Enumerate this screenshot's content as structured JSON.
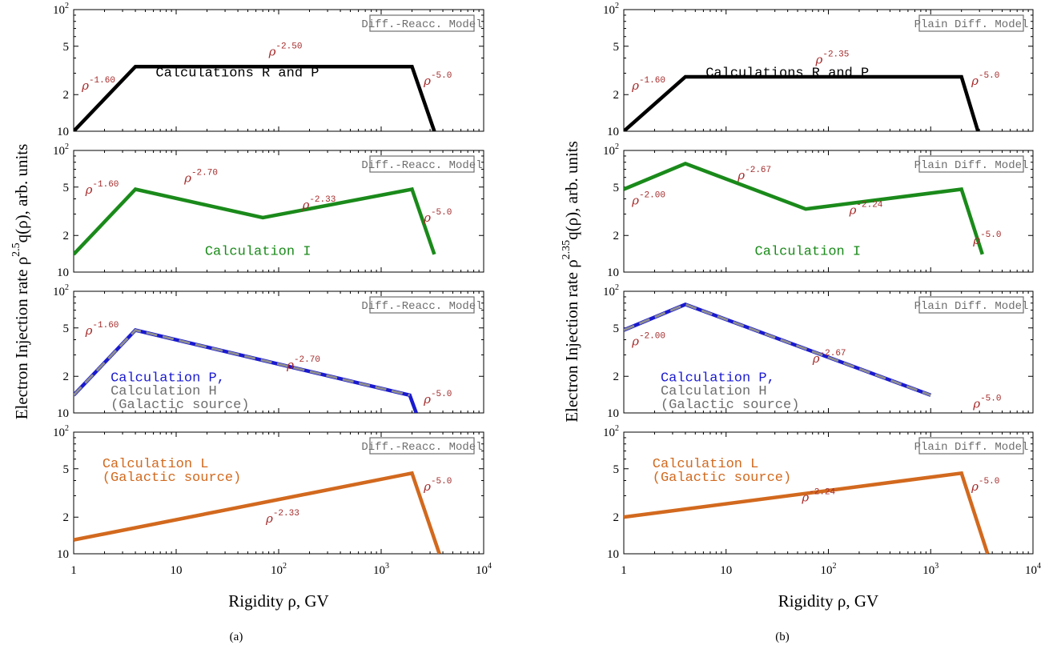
{
  "chart_data": [
    {
      "id": "a",
      "caption": "(a)",
      "type": "line",
      "xscale": "log",
      "yscale": "log",
      "xlim": [
        1,
        10000
      ],
      "ylim": [
        10,
        100
      ],
      "x_ticks": [
        {
          "base": "1",
          "exp": ""
        },
        {
          "base": "10",
          "exp": ""
        },
        {
          "base": "10",
          "exp": "2"
        },
        {
          "base": "10",
          "exp": "3"
        },
        {
          "base": "10",
          "exp": "4"
        }
      ],
      "y_ticks": [
        {
          "value": 10,
          "label": "10",
          "exp": ""
        },
        {
          "value": 20,
          "label": "2",
          "exp": ""
        },
        {
          "value": 50,
          "label": "5",
          "exp": ""
        },
        {
          "value": 100,
          "label": "10",
          "exp": "2"
        }
      ],
      "xlabel": "Rigidity ρ,   GV",
      "ylabel": {
        "text": "Electron Injection rate  ρ",
        "exp": "2.5",
        "rest": "q(ρ),   arb. units"
      },
      "panels": [
        {
          "model_label": "Diff.-Reacc. Model",
          "labels": [
            {
              "text": "Calculations R and P",
              "color": "#000000"
            }
          ],
          "series": [
            {
              "color": "#000000",
              "dashed": false,
              "x": [
                1,
                4,
                2000,
                3300
              ],
              "y": [
                10,
                34,
                34,
                10
              ]
            }
          ],
          "slopes": [
            {
              "base": "ρ",
              "exp": "-1.60",
              "x": 1.2,
              "y": 22
            },
            {
              "base": "ρ",
              "exp": "-2.50",
              "x": 80,
              "y": 42
            },
            {
              "base": "ρ",
              "exp": "-5.0",
              "x": 2600,
              "y": 24
            }
          ]
        },
        {
          "model_label": "Diff.-Reacc. Model",
          "labels": [
            {
              "text": "Calculation I",
              "color": "#1a8a1a"
            }
          ],
          "series": [
            {
              "color": "#1a8a1a",
              "dashed": false,
              "x": [
                1,
                4,
                70,
                2000,
                3300
              ],
              "y": [
                14,
                48,
                28,
                48,
                14
              ]
            }
          ],
          "slopes": [
            {
              "base": "ρ",
              "exp": "-1.60",
              "x": 1.3,
              "y": 44
            },
            {
              "base": "ρ",
              "exp": "-2.70",
              "x": 12,
              "y": 55
            },
            {
              "base": "ρ",
              "exp": "-2.33",
              "x": 170,
              "y": 33
            },
            {
              "base": "ρ",
              "exp": "-5.0",
              "x": 2600,
              "y": 26
            }
          ]
        },
        {
          "model_label": "Diff.-Reacc. Model",
          "labels": [
            {
              "text": "Calculation P,",
              "color": "#1a1ad0"
            },
            {
              "text": "Calculation H",
              "color": "#6e6e6e"
            },
            {
              "text": "(Galactic source)",
              "color": "#6e6e6e"
            }
          ],
          "series": [
            {
              "color": "#1a1ad0",
              "dashed": false,
              "x": [
                1,
                4,
                1900,
                2200
              ],
              "y": [
                14,
                48,
                14,
                10
              ]
            },
            {
              "color": "#8f8f8f",
              "dashed": true,
              "x": [
                1,
                4,
                1900
              ],
              "y": [
                14,
                48,
                14
              ]
            }
          ],
          "slopes": [
            {
              "base": "ρ",
              "exp": "-1.60",
              "x": 1.3,
              "y": 44
            },
            {
              "base": "ρ",
              "exp": "-2.70",
              "x": 120,
              "y": 23
            },
            {
              "base": "ρ",
              "exp": "-5.0",
              "x": 2600,
              "y": 12
            }
          ]
        },
        {
          "model_label": "Diff.-Reacc. Model",
          "labels": [
            {
              "text": "Calculation L",
              "color": "#d2691e"
            },
            {
              "text": "(Galactic source)",
              "color": "#d2691e"
            }
          ],
          "series": [
            {
              "color": "#d2691e",
              "dashed": false,
              "x": [
                1,
                2000,
                3700
              ],
              "y": [
                13,
                46,
                10
              ]
            }
          ],
          "slopes": [
            {
              "base": "ρ",
              "exp": "-2.33",
              "x": 75,
              "y": 18
            },
            {
              "base": "ρ",
              "exp": "-5.0",
              "x": 2600,
              "y": 33
            }
          ]
        }
      ]
    },
    {
      "id": "b",
      "caption": "(b)",
      "type": "line",
      "xscale": "log",
      "yscale": "log",
      "xlim": [
        1,
        10000
      ],
      "ylim": [
        10,
        100
      ],
      "x_ticks": [
        {
          "base": "1",
          "exp": ""
        },
        {
          "base": "10",
          "exp": ""
        },
        {
          "base": "10",
          "exp": "2"
        },
        {
          "base": "10",
          "exp": "3"
        },
        {
          "base": "10",
          "exp": "4"
        }
      ],
      "y_ticks": [
        {
          "value": 10,
          "label": "10",
          "exp": ""
        },
        {
          "value": 20,
          "label": "2",
          "exp": ""
        },
        {
          "value": 50,
          "label": "5",
          "exp": ""
        },
        {
          "value": 100,
          "label": "10",
          "exp": "2"
        }
      ],
      "xlabel": "Rigidity ρ,   GV",
      "ylabel": {
        "text": "Electron Injection rate  ρ",
        "exp": "2.35",
        "rest": "q(ρ),   arb. units"
      },
      "panels": [
        {
          "model_label": "Plain Diff. Model",
          "labels": [
            {
              "text": "Calculations R and P",
              "color": "#000000"
            }
          ],
          "series": [
            {
              "color": "#000000",
              "dashed": false,
              "x": [
                1,
                4,
                2000,
                2900
              ],
              "y": [
                10,
                28,
                28,
                10
              ]
            }
          ],
          "slopes": [
            {
              "base": "ρ",
              "exp": "-1.60",
              "x": 1.2,
              "y": 22
            },
            {
              "base": "ρ",
              "exp": "-2.35",
              "x": 75,
              "y": 36
            },
            {
              "base": "ρ",
              "exp": "-5.0",
              "x": 2500,
              "y": 24
            }
          ]
        },
        {
          "model_label": "Plain Diff. Model",
          "labels": [
            {
              "text": "Calculation I",
              "color": "#1a8a1a"
            }
          ],
          "series": [
            {
              "color": "#1a8a1a",
              "dashed": false,
              "x": [
                1,
                4,
                60,
                2000,
                3200
              ],
              "y": [
                48,
                78,
                33,
                48,
                14
              ]
            }
          ],
          "slopes": [
            {
              "base": "ρ",
              "exp": "-2.00",
              "x": 1.2,
              "y": 36
            },
            {
              "base": "ρ",
              "exp": "-2.67",
              "x": 13,
              "y": 58
            },
            {
              "base": "ρ",
              "exp": "-2.24",
              "x": 160,
              "y": 30
            },
            {
              "base": "ρ",
              "exp": "-5.0",
              "x": 2600,
              "y": 17
            }
          ]
        },
        {
          "model_label": "Plain Diff. Model",
          "labels": [
            {
              "text": "Calculation P,",
              "color": "#1a1ad0"
            },
            {
              "text": "Calculation H",
              "color": "#6e6e6e"
            },
            {
              "text": "(Galactic source)",
              "color": "#6e6e6e"
            }
          ],
          "series": [
            {
              "color": "#1a1ad0",
              "dashed": false,
              "x": [
                1,
                4,
                1000
              ],
              "y": [
                48,
                78,
                14
              ]
            },
            {
              "color": "#8f8f8f",
              "dashed": true,
              "x": [
                1,
                4,
                1000
              ],
              "y": [
                48,
                78,
                14
              ]
            }
          ],
          "slopes": [
            {
              "base": "ρ",
              "exp": "-2.00",
              "x": 1.2,
              "y": 36
            },
            {
              "base": "ρ",
              "exp": "-2.67",
              "x": 70,
              "y": 26
            },
            {
              "base": "ρ",
              "exp": "-5.0",
              "x": 2600,
              "y": 11
            }
          ]
        },
        {
          "model_label": "Plain Diff. Model",
          "labels": [
            {
              "text": "Calculation L",
              "color": "#d2691e"
            },
            {
              "text": "(Galactic source)",
              "color": "#d2691e"
            }
          ],
          "series": [
            {
              "color": "#d2691e",
              "dashed": false,
              "x": [
                1,
                2000,
                3600
              ],
              "y": [
                20,
                46,
                10
              ]
            }
          ],
          "slopes": [
            {
              "base": "ρ",
              "exp": "-2.24",
              "x": 55,
              "y": 27
            },
            {
              "base": "ρ",
              "exp": "-5.0",
              "x": 2500,
              "y": 33
            }
          ]
        }
      ]
    }
  ]
}
